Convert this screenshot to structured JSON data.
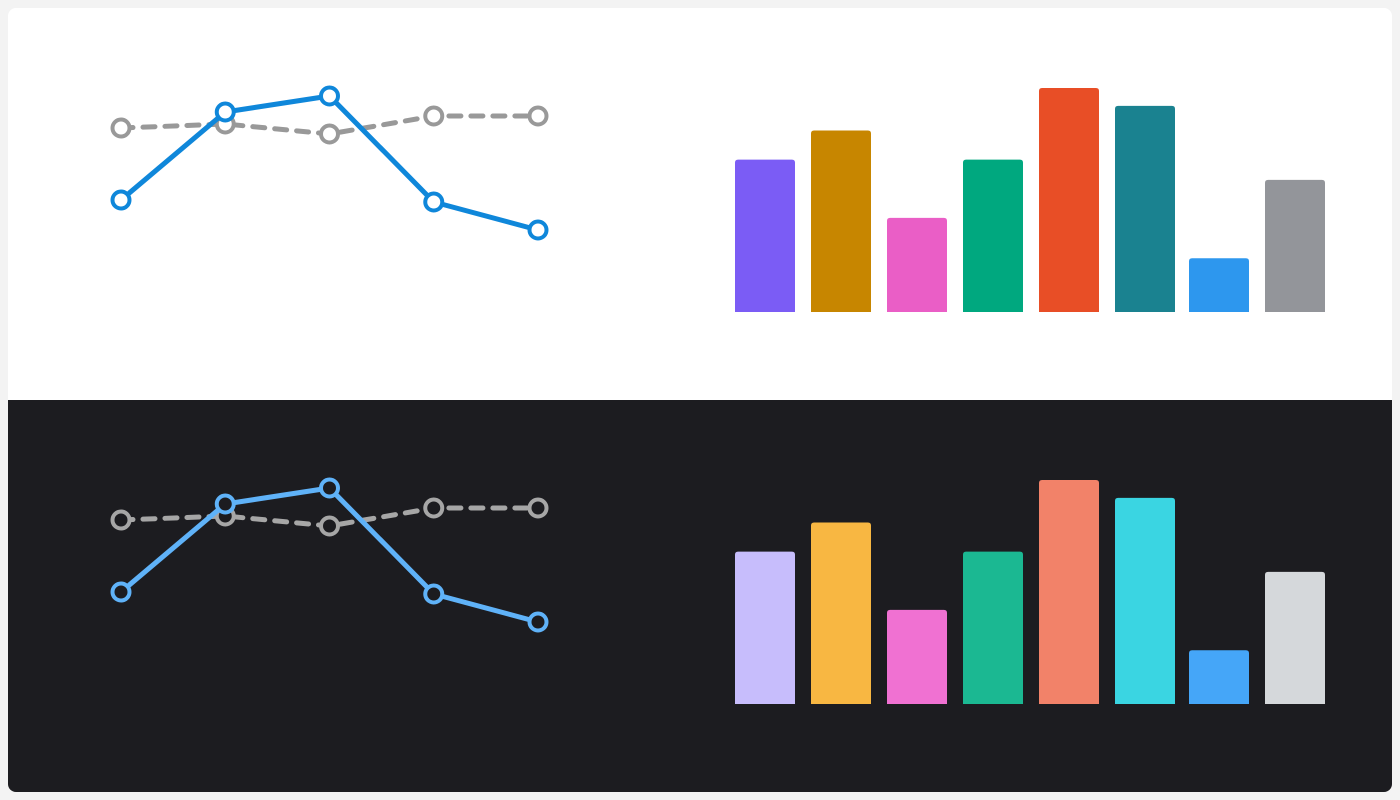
{
  "themes": {
    "light": {
      "background": "#ffffff",
      "line_color": "#0f87da",
      "reference_color": "#999999",
      "point_fill": "#ffffff",
      "bar_colors": [
        "#7b5cf5",
        "#c78600",
        "#ea5ec6",
        "#00a87f",
        "#e84e26",
        "#1a8290",
        "#2d97ee",
        "#93959a"
      ]
    },
    "dark": {
      "background": "#1c1c20",
      "line_color": "#5fb2f8",
      "reference_color": "#a6a6a6",
      "point_fill": "#1c1c20",
      "bar_colors": [
        "#c7bdfc",
        "#f8b742",
        "#f071d2",
        "#1bb892",
        "#f28269",
        "#3ad5e2",
        "#45a6f8",
        "#d5d8db"
      ]
    }
  },
  "chart_data": [
    {
      "type": "line",
      "theme": "light",
      "x": [
        1,
        2,
        3,
        4,
        5
      ],
      "series": [
        {
          "values": [
            64,
            108,
            116,
            63,
            49
          ],
          "style": "solid"
        },
        {
          "values": [
            100,
            102,
            97,
            106,
            106
          ],
          "style": "dashed"
        }
      ],
      "ylim": [
        0,
        140
      ],
      "grid": false,
      "axes_visible": false
    },
    {
      "type": "bar",
      "theme": "light",
      "categories": [
        "",
        "",
        "",
        "",
        "",
        "",
        "",
        ""
      ],
      "values": [
        68,
        81,
        42,
        68,
        100,
        92,
        24,
        59
      ],
      "ylim": [
        0,
        100
      ],
      "grid": false,
      "axes_visible": false
    },
    {
      "type": "line",
      "theme": "dark",
      "x": [
        1,
        2,
        3,
        4,
        5
      ],
      "series": [
        {
          "values": [
            64,
            108,
            116,
            63,
            49
          ],
          "style": "solid"
        },
        {
          "values": [
            100,
            102,
            97,
            106,
            106
          ],
          "style": "dashed"
        }
      ],
      "ylim": [
        0,
        140
      ],
      "grid": false,
      "axes_visible": false
    },
    {
      "type": "bar",
      "theme": "dark",
      "categories": [
        "",
        "",
        "",
        "",
        "",
        "",
        "",
        ""
      ],
      "values": [
        68,
        81,
        42,
        68,
        100,
        92,
        24,
        59
      ],
      "ylim": [
        0,
        100
      ],
      "grid": false,
      "axes_visible": false
    }
  ]
}
